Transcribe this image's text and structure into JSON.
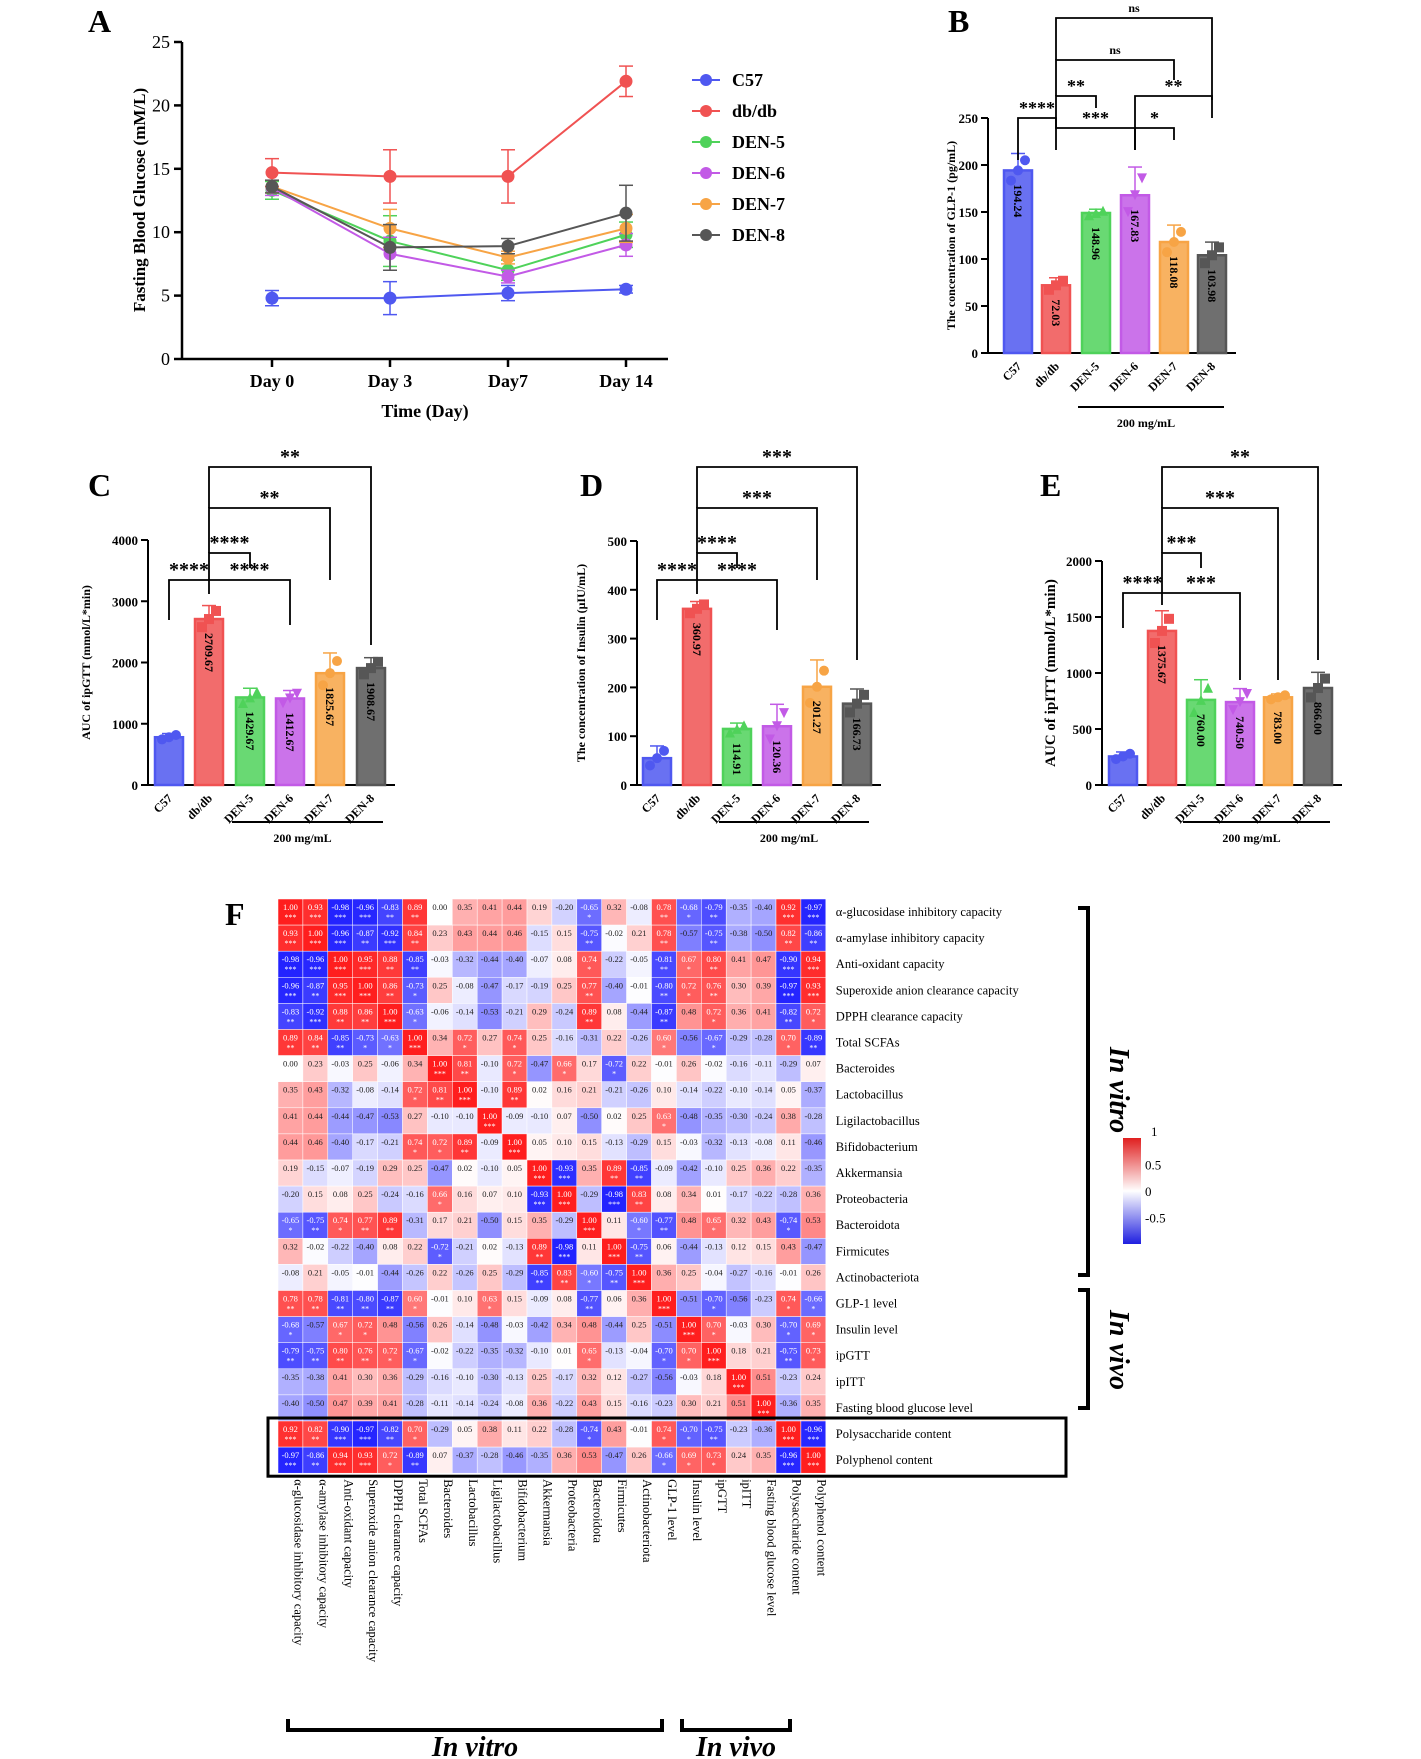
{
  "panels": {
    "a": "A",
    "b": "B",
    "c": "C",
    "d": "D",
    "e": "E",
    "f": "F"
  },
  "group_colors": {
    "C57": "#4f58f0",
    "db/db": "#f05252",
    "DEN-5": "#4fd25a",
    "DEN-6": "#c25ae6",
    "DEN-7": "#f7a445",
    "DEN-8": "#565656"
  },
  "chart_data": [
    {
      "id": "A",
      "type": "line",
      "xlabel": "Time (Day)",
      "ylabel": "Fasting Blood Glucose (mM/L)",
      "categories": [
        "Day 0",
        "Day 3",
        "Day7",
        "Day 14"
      ],
      "ylim": [
        0,
        25
      ],
      "yticks": [
        0,
        5,
        10,
        15,
        20,
        25
      ],
      "legend": "right",
      "series": [
        {
          "name": "C57",
          "values": [
            4.8,
            4.8,
            5.2,
            5.5
          ],
          "err": [
            0.6,
            1.3,
            0.6,
            0.3
          ]
        },
        {
          "name": "db/db",
          "values": [
            14.7,
            14.4,
            14.4,
            21.9
          ],
          "err": [
            1.1,
            2.1,
            2.1,
            1.2
          ]
        },
        {
          "name": "DEN-5",
          "values": [
            13.3,
            9.3,
            7.0,
            9.8
          ],
          "err": [
            0.7,
            2.0,
            0.8,
            1.0
          ]
        },
        {
          "name": "DEN-6",
          "values": [
            13.5,
            8.3,
            6.5,
            9.0
          ],
          "err": [
            0.6,
            1.3,
            0.5,
            0.9
          ]
        },
        {
          "name": "DEN-7",
          "values": [
            13.6,
            10.3,
            8.0,
            10.3
          ],
          "err": [
            0.5,
            1.5,
            0.5,
            1.1
          ]
        },
        {
          "name": "DEN-8",
          "values": [
            13.6,
            8.8,
            8.9,
            11.5
          ],
          "err": [
            0.5,
            1.8,
            0.6,
            2.2
          ]
        }
      ]
    },
    {
      "id": "B",
      "type": "bar",
      "ylabel": "The concentration of GLP-1 (pg/mL)",
      "categories": [
        "C57",
        "db/db",
        "DEN-5",
        "DEN-6",
        "DEN-7",
        "DEN-8"
      ],
      "values": [
        194.24,
        72.03,
        148.96,
        167.83,
        118.08,
        103.98
      ],
      "value_labels": [
        "194.24",
        "72.03",
        "148.96",
        "167.83",
        "118.08",
        "103.98"
      ],
      "errors": [
        18,
        8,
        4,
        30,
        18,
        14
      ],
      "ylim": [
        0,
        250
      ],
      "yticks": [
        0,
        50,
        100,
        150,
        200,
        250
      ],
      "group_label": "200 mg/mL",
      "significance": [
        {
          "from": "C57",
          "to": "db/db",
          "label": "****"
        },
        {
          "from": "db/db",
          "to": "DEN-5",
          "label": "**"
        },
        {
          "from": "db/db",
          "to": "DEN-6",
          "label": "***"
        },
        {
          "from": "db/db",
          "to": "DEN-7",
          "label": "ns"
        },
        {
          "from": "db/db",
          "to": "DEN-8",
          "label": "ns"
        },
        {
          "from": "DEN-6",
          "to": "DEN-7",
          "label": "*"
        },
        {
          "from": "DEN-6",
          "to": "DEN-8",
          "label": "**"
        }
      ]
    },
    {
      "id": "C",
      "type": "bar",
      "ylabel": "AUC of ipGTT (mmol/L*min)",
      "categories": [
        "C57",
        "db/db",
        "DEN-5",
        "DEN-6",
        "DEN-7",
        "DEN-8"
      ],
      "values": [
        780,
        2709.67,
        1429.67,
        1412.67,
        1825.67,
        1908.67
      ],
      "value_labels": [
        "",
        "2709.67",
        "1429.67",
        "1412.67",
        "1825.67",
        "1908.67"
      ],
      "errors": [
        60,
        220,
        150,
        130,
        330,
        170
      ],
      "ylim": [
        0,
        4000
      ],
      "yticks": [
        0,
        1000,
        2000,
        3000,
        4000
      ],
      "group_label": "200 mg/mL",
      "significance": [
        {
          "from": "C57",
          "to": "db/db",
          "label": "****"
        },
        {
          "from": "db/db",
          "to": "DEN-5",
          "label": "****"
        },
        {
          "from": "db/db",
          "to": "DEN-6",
          "label": "****"
        },
        {
          "from": "db/db",
          "to": "DEN-7",
          "label": "**"
        },
        {
          "from": "db/db",
          "to": "DEN-8",
          "label": "**"
        }
      ]
    },
    {
      "id": "D",
      "type": "bar",
      "ylabel": "The concentration of Insulin (μIU/mL)",
      "categories": [
        "C57",
        "db/db",
        "DEN-5",
        "DEN-6",
        "DEN-7",
        "DEN-8"
      ],
      "values": [
        55,
        360.97,
        114.91,
        120.36,
        201.27,
        166.73
      ],
      "value_labels": [
        "",
        "360.97",
        "114.91",
        "120.36",
        "201.27",
        "166.73"
      ],
      "errors": [
        25,
        15,
        12,
        45,
        55,
        30
      ],
      "ylim": [
        0,
        500
      ],
      "yticks": [
        0,
        100,
        200,
        300,
        400,
        500
      ],
      "group_label": "200 mg/mL",
      "significance": [
        {
          "from": "C57",
          "to": "db/db",
          "label": "****"
        },
        {
          "from": "db/db",
          "to": "DEN-5",
          "label": "****"
        },
        {
          "from": "db/db",
          "to": "DEN-6",
          "label": "****"
        },
        {
          "from": "db/db",
          "to": "DEN-7",
          "label": "***"
        },
        {
          "from": "db/db",
          "to": "DEN-8",
          "label": "***"
        }
      ]
    },
    {
      "id": "E",
      "type": "bar",
      "ylabel": "AUC of ipITT (mmol/L*min)",
      "categories": [
        "C57",
        "db/db",
        "DEN-5",
        "DEN-6",
        "DEN-7",
        "DEN-8"
      ],
      "values": [
        255,
        1375.67,
        760.0,
        740.5,
        783.0,
        866.0
      ],
      "value_labels": [
        "",
        "1375.67",
        "760.00",
        "740.50",
        "783.00",
        "866.00"
      ],
      "errors": [
        40,
        180,
        180,
        120,
        30,
        140
      ],
      "ylim": [
        0,
        2000
      ],
      "yticks": [
        0,
        500,
        1000,
        1500,
        2000
      ],
      "group_label": "200 mg/mL",
      "significance": [
        {
          "from": "C57",
          "to": "db/db",
          "label": "****"
        },
        {
          "from": "db/db",
          "to": "DEN-5",
          "label": "***"
        },
        {
          "from": "db/db",
          "to": "DEN-6",
          "label": "***"
        },
        {
          "from": "db/db",
          "to": "DEN-7",
          "label": "***"
        },
        {
          "from": "db/db",
          "to": "DEN-8",
          "label": "**"
        }
      ]
    },
    {
      "id": "F",
      "type": "heatmap",
      "rows": [
        "α-glucosidase inhibitory capacity",
        "α-amylase inhibitory capacity",
        "Anti-oxidant capacity",
        "Superoxide anion clearance capacity",
        "DPPH clearance capacity",
        "Total SCFAs",
        "Bacteroides",
        "Lactobacillus",
        "Ligilactobacillus",
        "Bifidobacterium",
        "Akkermansia",
        "Proteobacteria",
        "Bacteroidota",
        "Firmicutes",
        "Actinobacteriota",
        "GLP-1 level",
        "Insulin level",
        "ipGTT",
        "ipITT",
        "Fasting blood glucose level",
        "Polysaccharide content",
        "Polyphenol content"
      ],
      "columns": [
        "α-glucosidase inhibitory capacity",
        "α-amylase inhibitory capacity",
        "Anti-oxidant capacity",
        "Superoxide anion clearance capacity",
        "DPPH clearance capacity",
        "Total SCFAs",
        "Bacteroides",
        "Lactobacillus",
        "Ligilactobacillus",
        "Bifidobacterium",
        "Akkermansia",
        "Proteobacteria",
        "Bacteroidota",
        "Firmicutes",
        "Actinobacteriota",
        "GLP-1 level",
        "Insulin level",
        "ipGTT",
        "ipITT",
        "Fasting blood glucose level",
        "Polysaccharide content",
        "Polyphenol content"
      ],
      "matrix": [
        [
          1.0,
          0.93,
          -0.98,
          -0.96,
          -0.83,
          0.89,
          -0.0,
          0.35,
          0.41,
          0.44,
          0.19,
          -0.2,
          -0.65,
          0.32,
          -0.08,
          0.78,
          -0.68,
          -0.79,
          -0.35,
          -0.4,
          0.92,
          -0.97
        ],
        [
          0.93,
          1.0,
          -0.96,
          -0.87,
          -0.92,
          0.84,
          0.23,
          0.43,
          0.44,
          0.46,
          -0.15,
          0.15,
          -0.75,
          -0.02,
          0.21,
          0.78,
          -0.57,
          -0.75,
          -0.38,
          -0.5,
          0.82,
          -0.86
        ],
        [
          -0.98,
          -0.96,
          1.0,
          0.95,
          0.88,
          -0.85,
          -0.03,
          -0.32,
          -0.44,
          -0.4,
          -0.07,
          0.08,
          0.74,
          -0.22,
          -0.05,
          -0.81,
          0.67,
          0.8,
          0.41,
          0.47,
          -0.9,
          0.94
        ],
        [
          -0.96,
          -0.87,
          0.95,
          1.0,
          0.86,
          -0.73,
          0.25,
          -0.08,
          -0.47,
          -0.17,
          -0.19,
          0.25,
          0.77,
          -0.4,
          -0.01,
          -0.8,
          0.72,
          0.76,
          0.3,
          0.39,
          -0.97,
          0.93
        ],
        [
          -0.83,
          -0.92,
          0.88,
          0.86,
          1.0,
          -0.63,
          -0.06,
          -0.14,
          -0.53,
          -0.21,
          0.29,
          -0.24,
          0.89,
          0.08,
          -0.44,
          -0.87,
          0.48,
          0.72,
          0.36,
          0.41,
          -0.82,
          0.72
        ],
        [
          0.89,
          0.84,
          -0.85,
          -0.73,
          -0.63,
          1.0,
          0.34,
          0.72,
          0.27,
          0.74,
          0.25,
          -0.16,
          -0.31,
          0.22,
          -0.26,
          0.6,
          -0.56,
          -0.67,
          -0.29,
          -0.28,
          0.7,
          -0.89
        ],
        [
          -0.0,
          0.23,
          -0.03,
          0.25,
          -0.06,
          0.34,
          1.0,
          0.81,
          -0.1,
          0.72,
          -0.47,
          0.66,
          0.17,
          -0.72,
          0.22,
          -0.01,
          0.26,
          -0.02,
          -0.16,
          -0.11,
          -0.29,
          0.07
        ],
        [
          0.35,
          0.43,
          -0.32,
          -0.08,
          -0.14,
          0.72,
          0.81,
          1.0,
          -0.1,
          0.89,
          0.02,
          0.16,
          0.21,
          -0.21,
          -0.26,
          0.1,
          -0.14,
          -0.22,
          -0.1,
          -0.14,
          0.05,
          -0.37
        ],
        [
          0.41,
          0.44,
          -0.44,
          -0.47,
          -0.53,
          0.27,
          -0.1,
          -0.1,
          1.0,
          -0.09,
          -0.1,
          0.07,
          -0.5,
          0.02,
          0.25,
          0.63,
          -0.48,
          -0.35,
          -0.3,
          -0.24,
          0.38,
          -0.28
        ],
        [
          0.44,
          0.46,
          -0.4,
          -0.17,
          -0.21,
          0.74,
          0.72,
          0.89,
          -0.09,
          1.0,
          0.05,
          0.1,
          0.15,
          -0.13,
          -0.29,
          0.15,
          -0.03,
          -0.32,
          -0.13,
          -0.08,
          0.11,
          -0.46
        ],
        [
          0.19,
          -0.15,
          -0.07,
          -0.19,
          0.29,
          0.25,
          -0.47,
          0.02,
          -0.1,
          0.05,
          1.0,
          -0.93,
          0.35,
          0.89,
          -0.85,
          -0.09,
          -0.42,
          -0.1,
          0.25,
          0.36,
          0.22,
          -0.35
        ],
        [
          -0.2,
          0.15,
          0.08,
          0.25,
          -0.24,
          -0.16,
          0.66,
          0.16,
          0.07,
          0.1,
          -0.93,
          1.0,
          -0.29,
          -0.98,
          0.83,
          0.08,
          0.34,
          0.01,
          -0.17,
          -0.22,
          -0.28,
          0.36
        ],
        [
          -0.65,
          -0.75,
          0.74,
          0.77,
          0.89,
          -0.31,
          0.17,
          0.21,
          -0.5,
          0.15,
          0.35,
          -0.29,
          1.0,
          0.11,
          -0.6,
          -0.77,
          0.48,
          0.65,
          0.32,
          0.43,
          -0.74,
          0.53
        ],
        [
          0.32,
          -0.02,
          -0.22,
          -0.4,
          0.08,
          0.22,
          -0.72,
          -0.21,
          0.02,
          -0.13,
          0.89,
          -0.98,
          0.11,
          1.0,
          -0.75,
          0.06,
          -0.44,
          -0.13,
          0.12,
          0.15,
          0.43,
          -0.47
        ],
        [
          -0.08,
          0.21,
          -0.05,
          -0.01,
          -0.44,
          -0.26,
          0.22,
          -0.26,
          0.25,
          -0.29,
          -0.85,
          0.83,
          -0.6,
          -0.75,
          1.0,
          0.36,
          0.25,
          -0.04,
          -0.27,
          -0.16,
          -0.01,
          0.26
        ],
        [
          0.78,
          0.78,
          -0.81,
          -0.8,
          -0.87,
          0.6,
          -0.01,
          0.1,
          0.63,
          0.15,
          -0.09,
          0.08,
          -0.77,
          0.06,
          0.36,
          1.0,
          -0.51,
          -0.7,
          -0.56,
          -0.23,
          0.74,
          -0.66
        ],
        [
          -0.68,
          -0.57,
          0.67,
          0.72,
          0.48,
          -0.56,
          0.26,
          -0.14,
          -0.48,
          -0.03,
          -0.42,
          0.34,
          0.48,
          -0.44,
          0.25,
          -0.51,
          1.0,
          0.7,
          -0.03,
          0.3,
          -0.7,
          0.69
        ],
        [
          -0.79,
          -0.75,
          0.8,
          0.76,
          0.72,
          -0.67,
          -0.02,
          -0.22,
          -0.35,
          -0.32,
          -0.1,
          0.01,
          0.65,
          -0.13,
          -0.04,
          -0.7,
          0.7,
          1.0,
          0.18,
          0.21,
          -0.75,
          0.73
        ],
        [
          -0.35,
          -0.38,
          0.41,
          0.3,
          0.36,
          -0.29,
          -0.16,
          -0.1,
          -0.3,
          -0.13,
          0.25,
          -0.17,
          0.32,
          0.12,
          -0.27,
          -0.56,
          -0.03,
          0.18,
          1.0,
          0.51,
          -0.23,
          0.24
        ],
        [
          -0.4,
          -0.5,
          0.47,
          0.39,
          0.41,
          -0.28,
          -0.11,
          -0.14,
          -0.24,
          -0.08,
          0.36,
          -0.22,
          0.43,
          0.15,
          -0.16,
          -0.23,
          0.3,
          0.21,
          0.51,
          1.0,
          -0.36,
          0.35
        ],
        [
          0.92,
          0.82,
          -0.9,
          -0.97,
          -0.82,
          0.7,
          -0.29,
          0.05,
          0.38,
          0.11,
          0.22,
          -0.28,
          -0.74,
          0.43,
          -0.01,
          0.74,
          -0.7,
          -0.75,
          -0.23,
          -0.36,
          1.0,
          -0.96
        ],
        [
          -0.97,
          -0.86,
          0.94,
          0.93,
          0.72,
          -0.89,
          0.07,
          -0.37,
          -0.28,
          -0.46,
          -0.35,
          0.36,
          0.53,
          -0.47,
          0.26,
          -0.66,
          0.69,
          0.73,
          0.24,
          0.35,
          -0.96,
          1.0
        ]
      ],
      "colorbar": {
        "ticks": [
          "1",
          "0.5",
          "0",
          "-0.5"
        ],
        "min": -1,
        "max": 1,
        "colors": [
          "#1f1fe0",
          "#ffffff",
          "#e01f1f"
        ]
      },
      "bracket_labels": {
        "right_top": "In vitro",
        "right_bottom": "In vivo",
        "bottom_left": "In vitro",
        "bottom_right": "In vivo"
      }
    }
  ]
}
